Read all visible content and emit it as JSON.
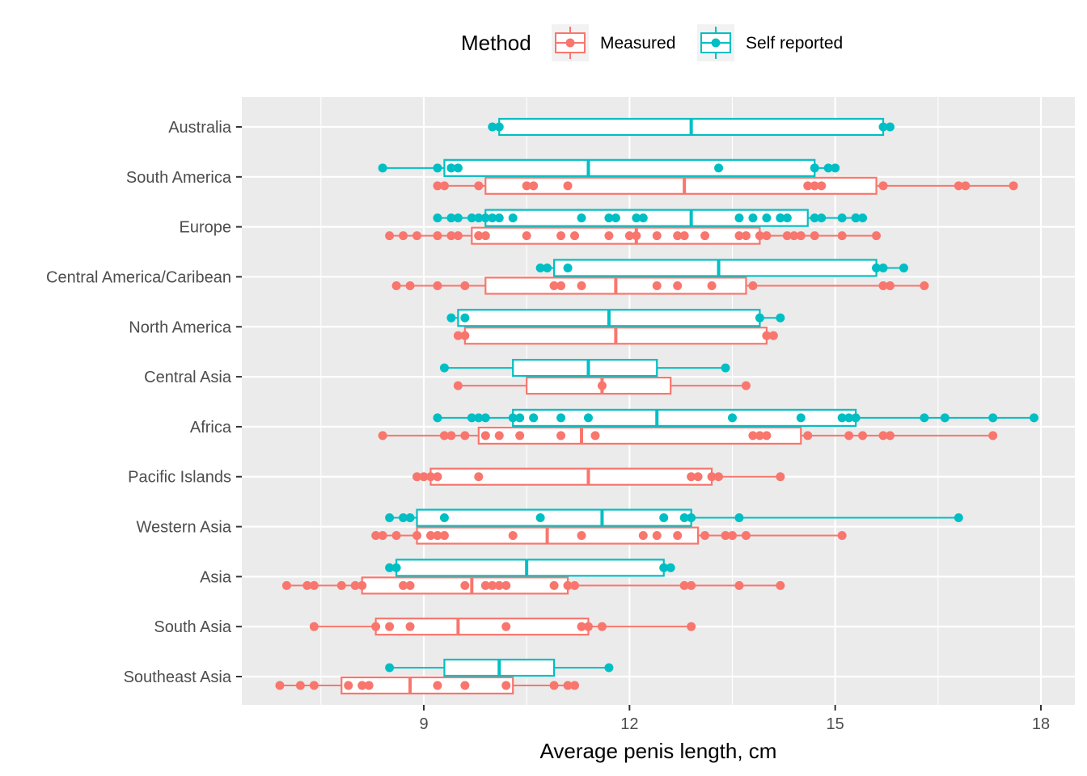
{
  "chart_data": {
    "type": "boxplot",
    "orientation": "horizontal",
    "xlabel": "Average penis length, cm",
    "ylabel": "",
    "xlim": [
      6.9,
      18.5
    ],
    "x_ticks": [
      9,
      12,
      15,
      18
    ],
    "x_tick_labels": [
      "9",
      "12",
      "15",
      "18"
    ],
    "grid": true,
    "legend": {
      "title": "Method",
      "position": "top",
      "items": [
        {
          "key": "measured",
          "label": "Measured",
          "color": "#F8766D"
        },
        {
          "key": "self",
          "label": "Self reported",
          "color": "#00BFC4"
        }
      ]
    },
    "categories": [
      "Australia",
      "South America",
      "Europe",
      "Central America/Caribean",
      "North America",
      "Central Asia",
      "Africa",
      "Pacific Islands",
      "Western Asia",
      "Asia",
      "South Asia",
      "Southeast Asia"
    ],
    "series": [
      {
        "name": "Measured",
        "color": "#F8766D",
        "groups": [
          {
            "category": "South America",
            "box": [
              9.9,
              12.8,
              15.6
            ],
            "points": [
              9.2,
              9.3,
              9.8,
              10.5,
              10.6,
              11.1,
              14.6,
              14.7,
              14.8,
              15.7,
              16.8,
              16.9,
              17.6
            ]
          },
          {
            "category": "Europe",
            "box": [
              9.7,
              12.1,
              13.9
            ],
            "points": [
              8.5,
              8.7,
              8.9,
              9.2,
              9.4,
              9.5,
              9.8,
              9.8,
              9.9,
              10.5,
              11.0,
              11.2,
              11.7,
              12.0,
              12.1,
              12.4,
              12.7,
              12.8,
              13.1,
              13.6,
              13.7,
              13.9,
              14.0,
              14.3,
              14.4,
              14.5,
              14.7,
              15.1,
              15.6
            ]
          },
          {
            "category": "Central America/Caribean",
            "box": [
              9.9,
              11.8,
              13.7
            ],
            "points": [
              8.6,
              8.8,
              9.2,
              9.6,
              10.9,
              11.0,
              11.3,
              12.4,
              12.7,
              13.2,
              13.8,
              15.7,
              15.8,
              16.3
            ]
          },
          {
            "category": "North America",
            "box": [
              9.6,
              11.8,
              14.0
            ],
            "points": [
              9.5,
              9.6,
              14.0,
              14.1
            ]
          },
          {
            "category": "Central Asia",
            "box": [
              10.5,
              11.6,
              12.6
            ],
            "points": [
              9.5,
              11.6,
              13.7
            ]
          },
          {
            "category": "Africa",
            "box": [
              9.8,
              11.3,
              14.5
            ],
            "points": [
              8.4,
              9.3,
              9.4,
              9.6,
              9.9,
              10.1,
              10.4,
              11.0,
              11.5,
              13.8,
              13.9,
              14.0,
              14.6,
              15.2,
              15.4,
              15.7,
              15.8,
              17.3
            ]
          },
          {
            "category": "Pacific Islands",
            "box": [
              9.1,
              11.4,
              13.2
            ],
            "points": [
              8.9,
              9.0,
              9.1,
              9.2,
              9.8,
              12.9,
              13.0,
              13.2,
              13.3,
              14.2
            ]
          },
          {
            "category": "Western Asia",
            "box": [
              8.9,
              10.8,
              13.0
            ],
            "points": [
              8.3,
              8.4,
              8.6,
              8.9,
              9.1,
              9.2,
              9.3,
              10.3,
              11.3,
              12.2,
              12.4,
              12.7,
              13.1,
              13.4,
              13.5,
              13.7,
              15.1
            ]
          },
          {
            "category": "Asia",
            "box": [
              8.1,
              9.7,
              11.1
            ],
            "points": [
              7.0,
              7.3,
              7.4,
              7.8,
              8.0,
              8.1,
              8.7,
              8.8,
              9.6,
              9.9,
              10.0,
              10.1,
              10.2,
              10.9,
              11.1,
              11.2,
              12.8,
              12.9,
              13.6,
              14.2
            ]
          },
          {
            "category": "South Asia",
            "box": [
              8.3,
              9.5,
              11.4
            ],
            "points": [
              7.4,
              8.3,
              8.5,
              8.8,
              10.2,
              11.3,
              11.4,
              11.6,
              12.9
            ]
          },
          {
            "category": "Southeast Asia",
            "box": [
              7.8,
              8.8,
              10.3
            ],
            "points": [
              6.9,
              7.2,
              7.4,
              7.9,
              8.1,
              8.2,
              9.2,
              9.6,
              10.2,
              10.9,
              11.1,
              11.2
            ]
          }
        ]
      },
      {
        "name": "Self reported",
        "color": "#00BFC4",
        "groups": [
          {
            "category": "Australia",
            "box": [
              10.1,
              12.9,
              15.7
            ],
            "points": [
              10.0,
              10.1,
              15.7,
              15.8
            ]
          },
          {
            "category": "South America",
            "box": [
              9.3,
              11.4,
              14.7
            ],
            "points": [
              8.4,
              9.2,
              9.4,
              9.5,
              13.3,
              14.7,
              14.9,
              15.0
            ]
          },
          {
            "category": "Europe",
            "box": [
              9.9,
              12.9,
              14.6
            ],
            "points": [
              9.2,
              9.4,
              9.5,
              9.7,
              9.8,
              9.9,
              10.0,
              10.1,
              10.3,
              11.3,
              11.7,
              11.8,
              12.1,
              12.2,
              13.6,
              13.8,
              14.0,
              14.2,
              14.2,
              14.3,
              14.7,
              14.8,
              15.1,
              15.3,
              15.3,
              15.4
            ]
          },
          {
            "category": "Central America/Caribean",
            "box": [
              10.9,
              13.3,
              15.6
            ],
            "points": [
              10.7,
              10.8,
              11.1,
              15.6,
              15.7,
              16.0
            ]
          },
          {
            "category": "North America",
            "box": [
              9.5,
              11.7,
              13.9
            ],
            "points": [
              9.4,
              9.6,
              13.9,
              14.2
            ]
          },
          {
            "category": "Central Asia",
            "box": [
              10.3,
              11.4,
              12.4
            ],
            "points": [
              9.3,
              13.4
            ]
          },
          {
            "category": "Africa",
            "box": [
              10.3,
              12.4,
              15.3
            ],
            "points": [
              9.2,
              9.7,
              9.8,
              9.9,
              10.3,
              10.4,
              10.6,
              11.0,
              11.4,
              13.5,
              14.5,
              15.1,
              15.2,
              15.3,
              16.3,
              16.6,
              17.3,
              17.9
            ]
          },
          {
            "category": "Western Asia",
            "box": [
              8.9,
              11.6,
              12.9
            ],
            "points": [
              8.5,
              8.7,
              8.8,
              9.3,
              10.7,
              12.5,
              12.8,
              12.9,
              13.6,
              16.8
            ]
          },
          {
            "category": "Asia",
            "box": [
              8.6,
              10.5,
              12.5
            ],
            "points": [
              8.5,
              8.6,
              12.5,
              12.6
            ]
          },
          {
            "category": "Southeast Asia",
            "box": [
              9.3,
              10.1,
              10.9
            ],
            "points": [
              8.5,
              11.7
            ]
          }
        ]
      }
    ]
  }
}
